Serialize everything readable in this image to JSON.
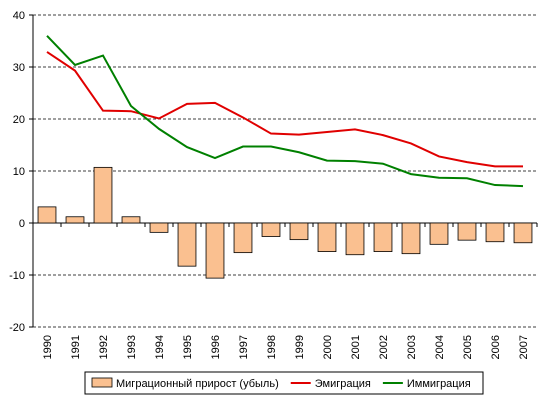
{
  "chart_data": {
    "type": "bar-line",
    "categories": [
      "1990",
      "1991",
      "1992",
      "1993",
      "1994",
      "1995",
      "1996",
      "1997",
      "1998",
      "1999",
      "2000",
      "2001",
      "2002",
      "2003",
      "2004",
      "2005",
      "2006",
      "2007"
    ],
    "series": [
      {
        "name": "Миграционный прирост (убыль)",
        "type": "bar",
        "color": "#fac090",
        "values": [
          3.1,
          1.2,
          10.7,
          1.2,
          -1.8,
          -8.3,
          -10.6,
          -5.7,
          -2.6,
          -3.2,
          -5.5,
          -6.1,
          -5.5,
          -5.9,
          -4.1,
          -3.3,
          -3.6,
          -3.8
        ]
      },
      {
        "name": "Эмиграция",
        "type": "line",
        "color": "#e00000",
        "values": [
          32.9,
          29.3,
          21.6,
          21.5,
          20.1,
          22.9,
          23.1,
          20.3,
          17.2,
          17.0,
          17.5,
          18.0,
          16.9,
          15.3,
          12.8,
          11.7,
          10.9,
          10.9
        ]
      },
      {
        "name": "Иммиграция",
        "type": "line",
        "color": "#008000",
        "values": [
          36.0,
          30.4,
          32.2,
          22.5,
          18.1,
          14.6,
          12.5,
          14.7,
          14.7,
          13.6,
          12.0,
          11.9,
          11.4,
          9.4,
          8.7,
          8.6,
          7.3,
          7.1
        ]
      }
    ],
    "ylim": [
      -20,
      40
    ],
    "yticks": [
      -20,
      -10,
      0,
      10,
      20,
      30,
      40
    ],
    "grid": true,
    "legend": "bottom"
  }
}
